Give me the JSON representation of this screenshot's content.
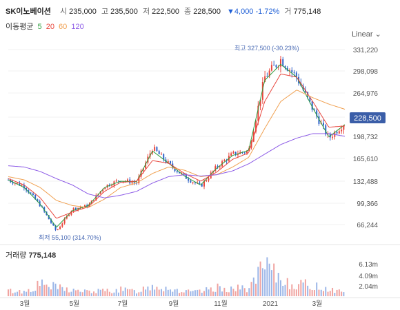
{
  "header": {
    "name": "SK이노베이션",
    "open_label": "시",
    "open": "235,000",
    "high_label": "고",
    "high": "235,500",
    "low_label": "저",
    "low": "222,500",
    "close_label": "종",
    "close": "228,500",
    "change": "▼4,000 -1.72%",
    "volume_label": "거",
    "volume": "775,148"
  },
  "ma_legend": {
    "label": "이동평균",
    "items": [
      {
        "label": "5",
        "color": "#2e9e3e"
      },
      {
        "label": "20",
        "color": "#e8453c"
      },
      {
        "label": "60",
        "color": "#f0a050"
      },
      {
        "label": "120",
        "color": "#8c5ae6"
      }
    ]
  },
  "scale_label": "Linear",
  "price_badge": "228,500",
  "annotations": {
    "high": "최고 327,500 (-30.23%)",
    "low": "최저 55,100 (314.70%)"
  },
  "volume_panel": {
    "title": "거래량",
    "value": "775,148",
    "y_ticks": [
      "6.13m",
      "4.09m",
      "2.04m"
    ]
  },
  "chart_data": [
    {
      "type": "line",
      "subtype": "candlestick-with-moving-averages",
      "y_ticks": [
        "331,220",
        "298,098",
        "264,976",
        "228,500",
        "198,732",
        "165,610",
        "132,488",
        "99,366",
        "66,244"
      ],
      "x_ticks": [
        "3월",
        "5월",
        "7월",
        "9월",
        "11월",
        "2021",
        "3월"
      ],
      "ylim": [
        50000,
        345000
      ],
      "x": [
        "2020-02",
        "2020-03",
        "2020-03",
        "2020-04",
        "2020-04",
        "2020-05",
        "2020-06",
        "2020-07",
        "2020-08",
        "2020-08",
        "2020-09",
        "2020-10",
        "2020-11",
        "2020-11",
        "2020-12",
        "2021-01",
        "2021-01",
        "2021-02",
        "2021-02",
        "2021-03",
        "2021-03",
        "2021-04"
      ],
      "series": [
        {
          "name": "종가",
          "values": [
            140000,
            130000,
            100000,
            60000,
            95000,
            100000,
            130000,
            140000,
            135000,
            190000,
            165000,
            145000,
            130000,
            160000,
            180000,
            185000,
            300000,
            327500,
            300000,
            250000,
            205000,
            228500
          ]
        },
        {
          "name": "5",
          "values": [
            140000,
            128000,
            102000,
            66000,
            92000,
            100000,
            128000,
            138000,
            137000,
            185000,
            166000,
            146000,
            132000,
            158000,
            178000,
            186000,
            295000,
            320000,
            300000,
            252000,
            207000,
            226000
          ]
        },
        {
          "name": "20",
          "values": [
            142000,
            132000,
            112000,
            80000,
            90000,
            98000,
            122000,
            136000,
            138000,
            170000,
            166000,
            150000,
            138000,
            152000,
            172000,
            182000,
            262000,
            305000,
            300000,
            262000,
            222000,
            224000
          ]
        },
        {
          "name": "60",
          "values": [
            145000,
            140000,
            128000,
            108000,
            100000,
            97000,
            110000,
            128000,
            135000,
            150000,
            160000,
            155000,
            145000,
            148000,
            160000,
            175000,
            220000,
            262000,
            280000,
            268000,
            258000,
            250000
          ]
        },
        {
          "name": "120",
          "values": [
            162000,
            160000,
            153000,
            142000,
            132000,
            118000,
            112000,
            116000,
            122000,
            135000,
            145000,
            148000,
            146000,
            148000,
            154000,
            165000,
            180000,
            195000,
            205000,
            212000,
            212000,
            208000
          ]
        }
      ]
    },
    {
      "type": "bar",
      "title": "거래량",
      "y_ticks": [
        "6.13m",
        "4.09m",
        "2.04m"
      ],
      "ylim": [
        0,
        6500000
      ],
      "values": [
        1100000,
        900000,
        2400000,
        1800000,
        1200000,
        900000,
        1100000,
        1300000,
        1000000,
        2200000,
        1600000,
        900000,
        900000,
        1700000,
        1500000,
        1600000,
        5800000,
        3300000,
        2400000,
        2100000,
        1500000,
        775148
      ]
    }
  ]
}
